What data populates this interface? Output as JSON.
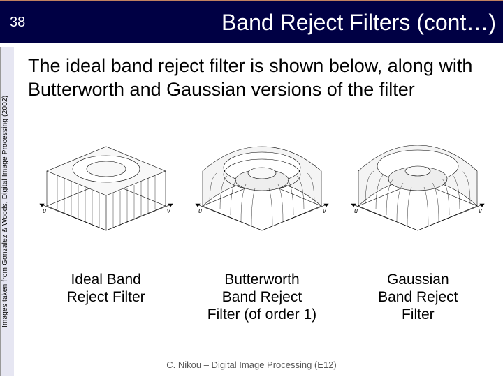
{
  "header": {
    "page_number": "38",
    "title": "Band Reject Filters (cont…)",
    "bg_color": "#000044",
    "text_color": "#ffffff",
    "title_fontsize": 32,
    "page_fontsize": 20
  },
  "citation": {
    "text": "Images taken from Gonzalez & Woods, Digital Image Processing (2002)",
    "fontsize": 10,
    "bg_color": "#e6e6f2"
  },
  "body": {
    "text": "The ideal band reject filter is shown below, along with Butterworth and Gaussian versions of the filter",
    "fontsize": 27,
    "color": "#000000"
  },
  "filters": [
    {
      "label": "Ideal Band\nReject Filter",
      "type": "ideal",
      "stroke": "#000000",
      "fill": "#ffffff"
    },
    {
      "label": "Butterworth\nBand Reject\nFilter (of order 1)",
      "type": "butterworth",
      "stroke": "#000000",
      "fill": "#ffffff"
    },
    {
      "label": "Gaussian\nBand Reject\nFilter",
      "type": "gaussian",
      "stroke": "#000000",
      "fill": "#ffffff"
    }
  ],
  "caption_fontsize": 21,
  "footer": {
    "text": "C. Nikou – Digital Image Processing (E12)",
    "fontsize": 13,
    "color": "#555555"
  },
  "slide_bg": "#ffffff",
  "accent_color": "#c08060"
}
